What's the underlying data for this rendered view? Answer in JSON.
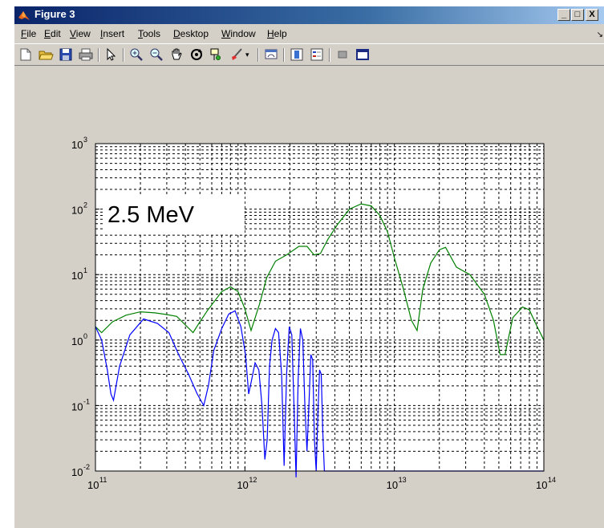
{
  "window": {
    "title": "Figure 3",
    "buttons": {
      "minimize": "_",
      "maximize": "□",
      "close": "X"
    }
  },
  "menu": {
    "items": [
      {
        "key": "F",
        "rest": "ile"
      },
      {
        "key": "E",
        "rest": "dit"
      },
      {
        "key": "V",
        "rest": "iew"
      },
      {
        "key": "I",
        "rest": "nsert"
      },
      {
        "key": "T",
        "rest": "ools"
      },
      {
        "key": "D",
        "rest": "esktop"
      },
      {
        "key": "W",
        "rest": "indow"
      },
      {
        "key": "H",
        "rest": "elp"
      }
    ]
  },
  "toolbar": {
    "icons": [
      "new-figure-icon",
      "open-file-icon",
      "save-icon",
      "print-icon",
      "edit-plot-arrow-icon",
      "zoom-in-icon",
      "zoom-out-icon",
      "pan-hand-icon",
      "rotate-3d-icon",
      "data-cursor-icon",
      "brush-icon",
      "link-plot-icon",
      "colorbar-icon",
      "legend-icon",
      "hide-plot-tools-icon",
      "show-plot-tools-icon"
    ]
  },
  "chart_data": {
    "type": "line",
    "xscale": "log",
    "yscale": "log",
    "xlim": [
      100000000000.0,
      100000000000000.0
    ],
    "ylim": [
      0.01,
      1000
    ],
    "grid": true,
    "x_ticks": [
      {
        "base": "10",
        "exp": "11"
      },
      {
        "base": "10",
        "exp": "12"
      },
      {
        "base": "10",
        "exp": "13"
      },
      {
        "base": "10",
        "exp": "14"
      }
    ],
    "y_ticks": [
      {
        "base": "10",
        "exp": "-2"
      },
      {
        "base": "10",
        "exp": "-1"
      },
      {
        "base": "10",
        "exp": "0"
      },
      {
        "base": "10",
        "exp": "1"
      },
      {
        "base": "10",
        "exp": "2"
      },
      {
        "base": "10",
        "exp": "3"
      }
    ],
    "annotation": "2.5 MeV",
    "series": [
      {
        "color": "#008000",
        "x": [
          100000000000.0,
          110000000000.0,
          130000000000.0,
          160000000000.0,
          200000000000.0,
          250000000000.0,
          300000000000.0,
          350000000000.0,
          410000000000.0,
          450000000000.0,
          500000000000.0,
          560000000000.0,
          630000000000.0,
          700000000000.0,
          800000000000.0,
          900000000000.0,
          1000000000000.0,
          1100000000000.0,
          1250000000000.0,
          1400000000000.0,
          1600000000000.0,
          1900000000000.0,
          2300000000000.0,
          2600000000000.0,
          2900000000000.0,
          3200000000000.0,
          3600000000000.0,
          4200000000000.0,
          5000000000000.0,
          6000000000000.0,
          7000000000000.0,
          8000000000000.0,
          9000000000000.0,
          10000000000000.0,
          11500000000000.0,
          13000000000000.0,
          14200000000000.0,
          15500000000000.0,
          17500000000000.0,
          20000000000000.0,
          22000000000000.0,
          26000000000000.0,
          32000000000000.0,
          40000000000000.0,
          46000000000000.0,
          51000000000000.0,
          55000000000000.0,
          62000000000000.0,
          72000000000000.0,
          80000000000000.0,
          88000000000000.0,
          100000000000000.0
        ],
        "y": [
          1.6,
          1.3,
          1.9,
          2.4,
          2.7,
          2.6,
          2.45,
          2.3,
          1.6,
          1.3,
          1.9,
          2.8,
          4.0,
          5.5,
          6.5,
          5.5,
          3.0,
          1.4,
          3.5,
          9.0,
          16,
          20,
          27,
          27,
          20,
          21,
          35,
          60,
          100,
          120,
          112,
          80,
          45,
          18,
          6,
          2.0,
          1.4,
          6,
          15,
          24,
          26,
          13,
          10,
          5,
          2,
          0.6,
          0.6,
          2.2,
          3.2,
          2.9,
          1.8,
          1.0
        ]
      },
      {
        "color": "#0000ff",
        "x": [
          100000000000.0,
          110000000000.0,
          120000000000.0,
          127000000000.0,
          132000000000.0,
          145000000000.0,
          170000000000.0,
          210000000000.0,
          260000000000.0,
          310000000000.0,
          360000000000.0,
          420000000000.0,
          480000000000.0,
          530000000000.0,
          570000000000.0,
          620000000000.0,
          700000000000.0,
          780000000000.0,
          860000000000.0,
          940000000000.0,
          1010000000000.0,
          1060000000000.0,
          1110000000000.0,
          1170000000000.0,
          1240000000000.0,
          1300000000000.0,
          1360000000000.0,
          1410000000000.0,
          1460000000000.0,
          1520000000000.0,
          1600000000000.0,
          1680000000000.0,
          1760000000000.0,
          1830000000000.0,
          1900000000000.0,
          1980000000000.0,
          2060000000000.0,
          2130000000000.0,
          2200000000000.0,
          2270000000000.0,
          2350000000000.0,
          2440000000000.0,
          2520000000000.0,
          2600000000000.0,
          2680000000000.0,
          2760000000000.0,
          2840000000000.0,
          2920000000000.0,
          3000000000000.0,
          3080000000000.0,
          3160000000000.0,
          3240000000000.0,
          3320000000000.0,
          3400000000000.0,
          3500000000000.0,
          3620000000000.0,
          3720000000000.0,
          5000000000000.0,
          10000000000000.0,
          20000000000000.0,
          50000000000000.0,
          100000000000000.0
        ],
        "y": [
          1.6,
          1.0,
          0.35,
          0.15,
          0.12,
          0.4,
          1.2,
          2.1,
          1.8,
          1.3,
          0.6,
          0.3,
          0.15,
          0.1,
          0.2,
          0.7,
          1.5,
          2.5,
          2.8,
          1.6,
          0.6,
          0.15,
          0.25,
          0.45,
          0.35,
          0.1,
          0.015,
          0.03,
          0.4,
          1.0,
          1.5,
          1.3,
          0.3,
          0.012,
          0.3,
          1.6,
          1.2,
          0.1,
          0.008,
          0.25,
          1.5,
          1.0,
          0.1,
          0.02,
          0.1,
          0.6,
          0.5,
          0.03,
          0.01,
          0.08,
          0.35,
          0.3,
          0.04,
          0.01,
          0.01,
          0.01,
          0.01,
          0.01,
          0.01,
          0.01,
          0.01,
          0.01
        ]
      }
    ]
  }
}
